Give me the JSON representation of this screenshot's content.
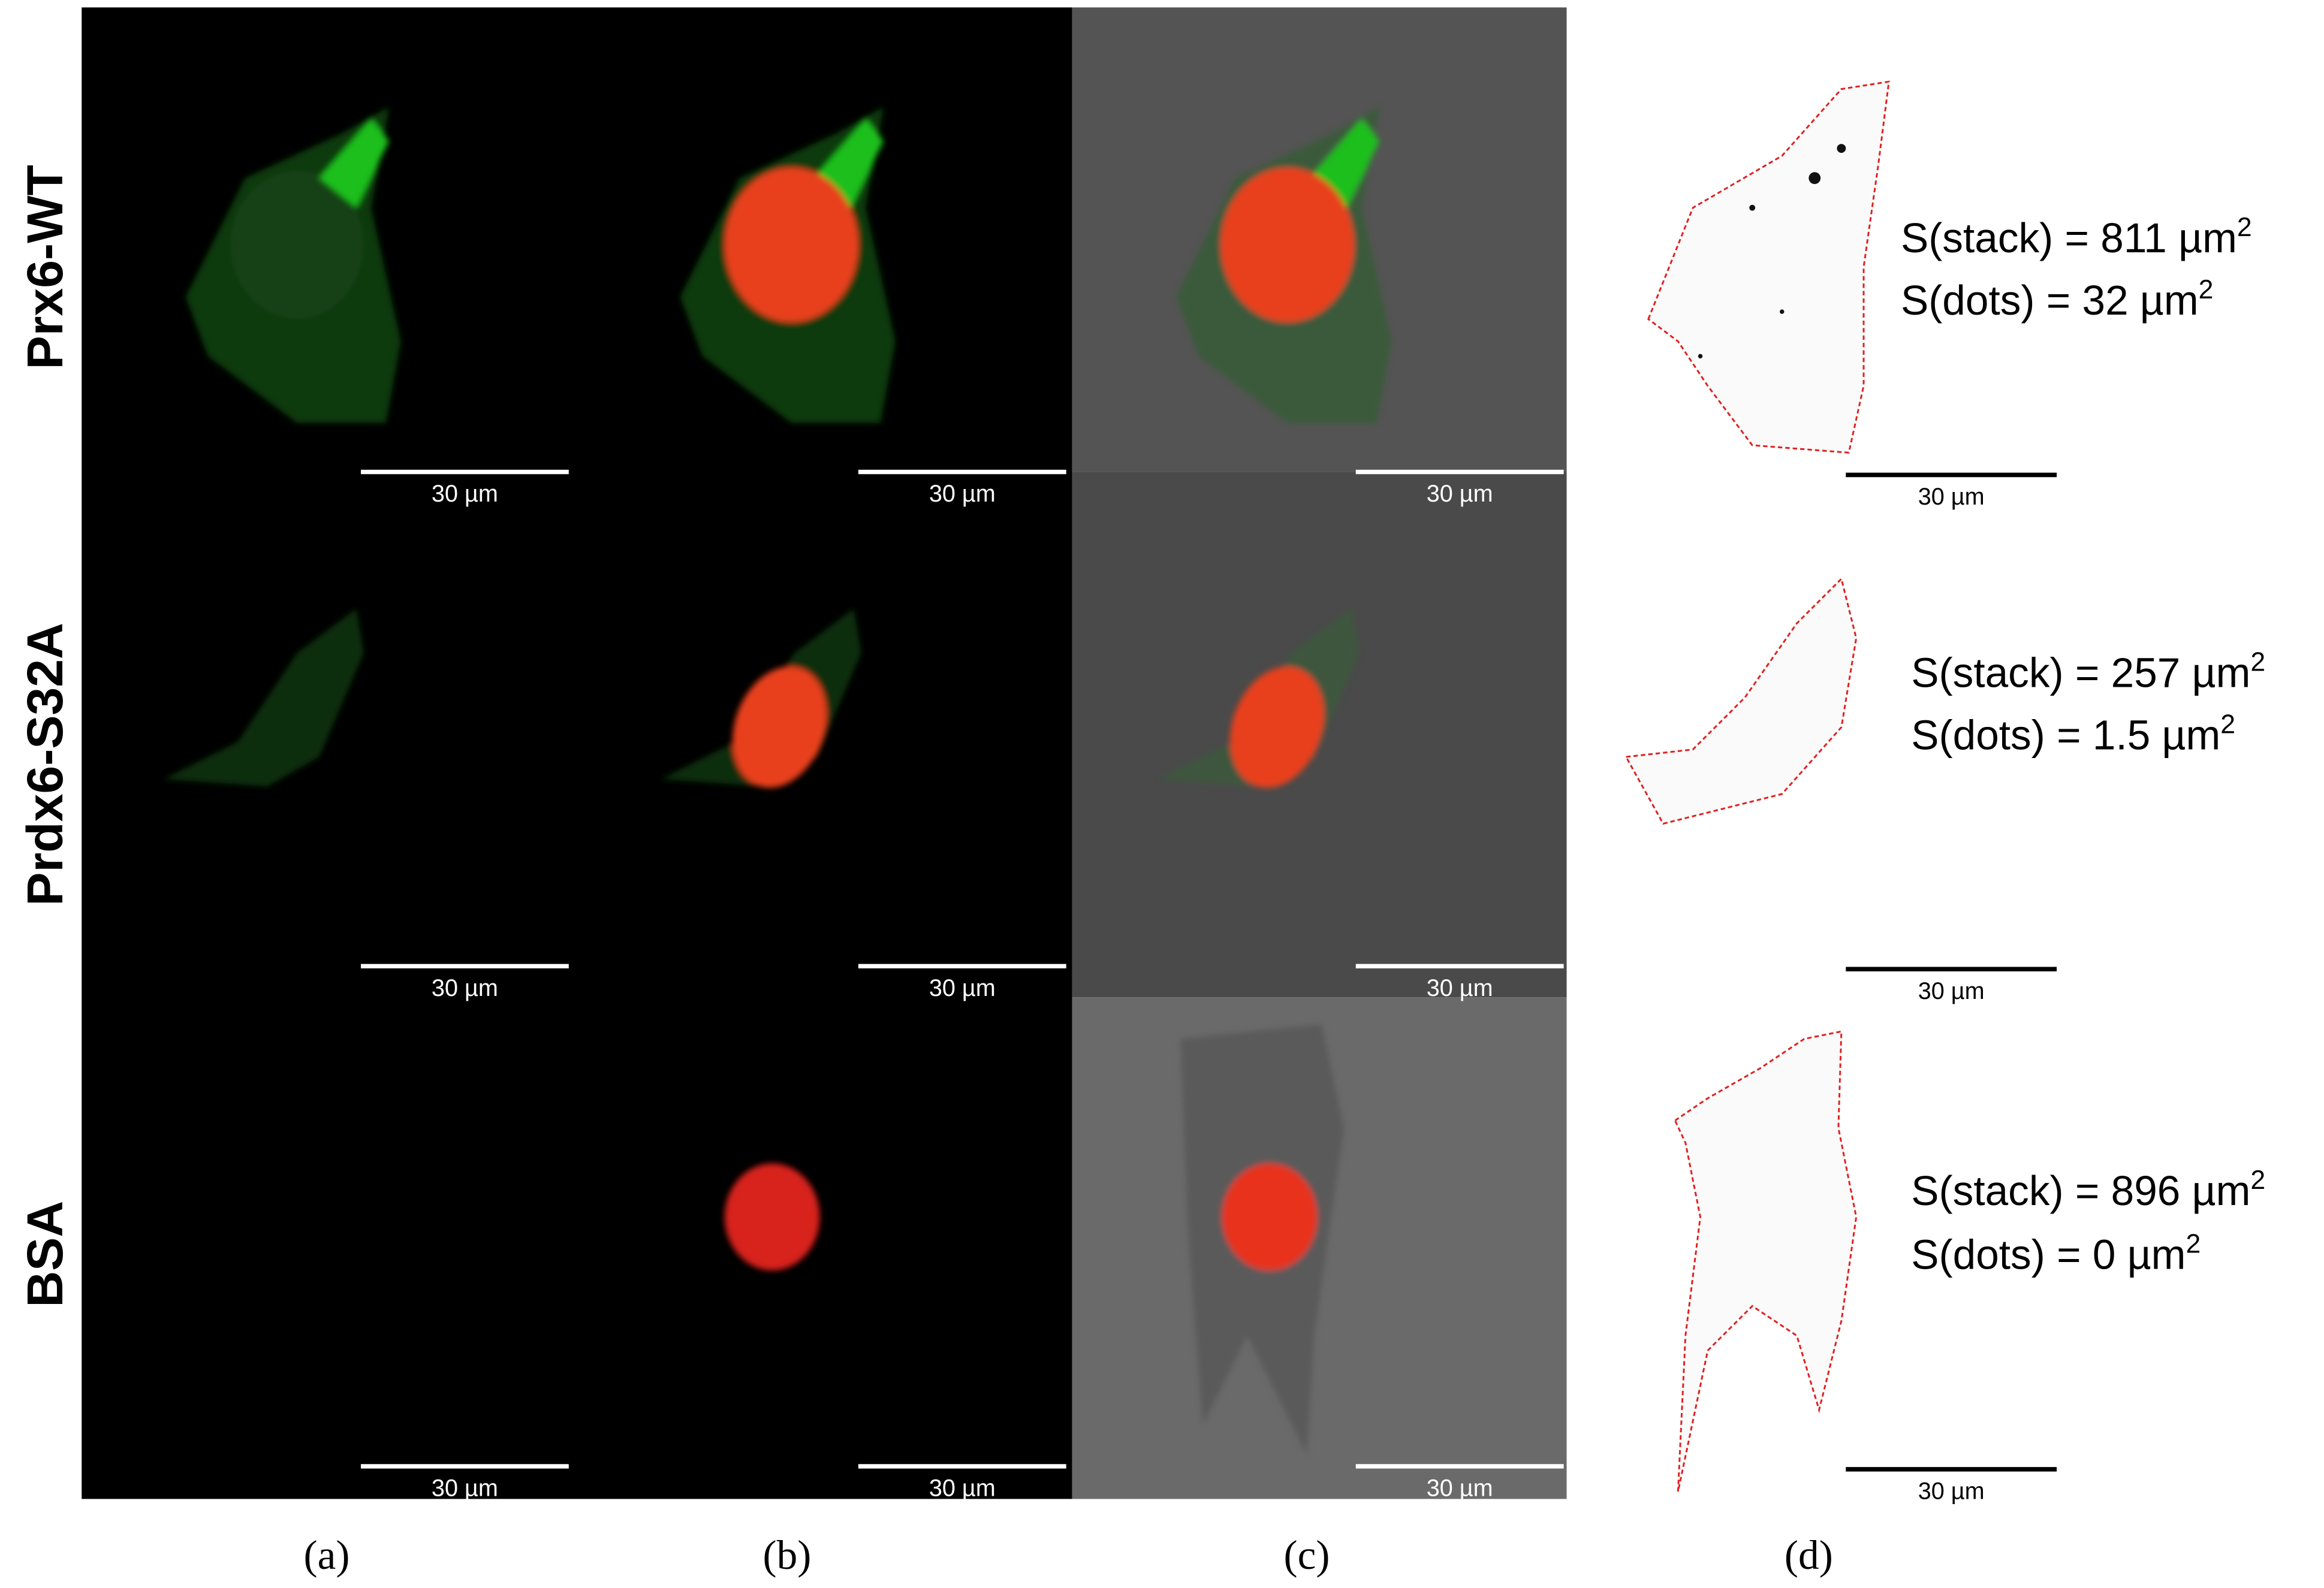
{
  "row_labels": [
    "Prx6-WT",
    "Prdx6-S32A",
    "BSA"
  ],
  "column_labels": [
    "(a)",
    "(b)",
    "(c)",
    "(d)"
  ],
  "scale_bars": [
    [
      "30 µm",
      "30 µm",
      "30 µm",
      "30 µm"
    ],
    [
      "30 µm",
      "30 µm",
      "30 µm",
      "30 µm"
    ],
    [
      "30 µm",
      "30 µm",
      "30 µm",
      "30 µm"
    ]
  ],
  "measurements": [
    [
      {
        "text": "S(stack) = 811 µm",
        "sup": "2"
      },
      {
        "text": "S(dots) = 32 µm",
        "sup": "2"
      }
    ],
    [
      {
        "text": "S(stack) = 257 µm",
        "sup": "2"
      },
      {
        "text": "S(dots) = 1.5 µm",
        "sup": "2"
      }
    ],
    [
      {
        "text": "S(stack) = 896 µm",
        "sup": "2"
      },
      {
        "text": "S(dots) = 0 µm",
        "sup": "2"
      }
    ]
  ]
}
